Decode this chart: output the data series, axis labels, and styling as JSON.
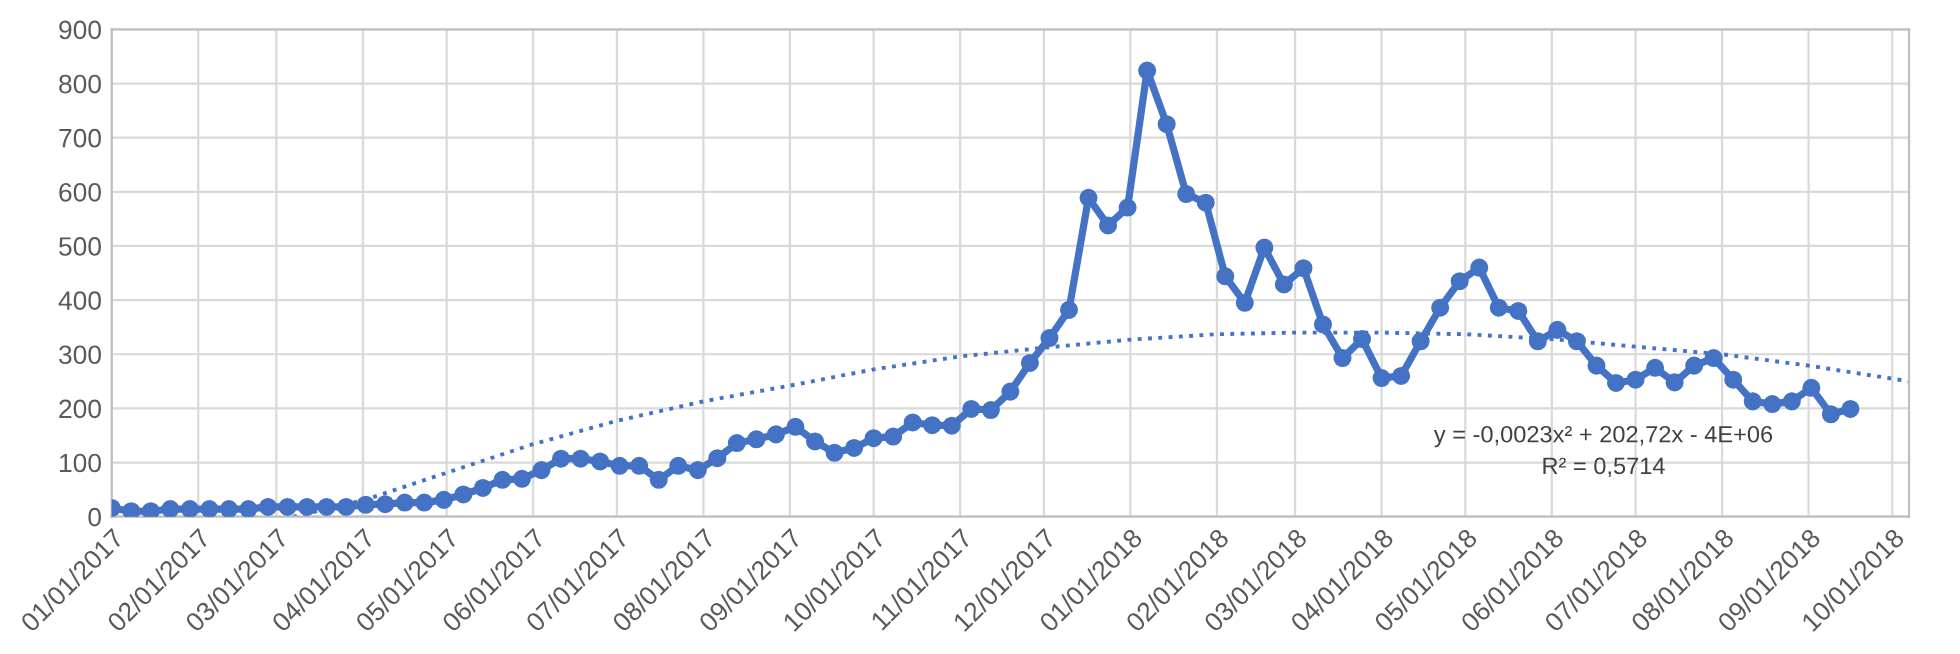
{
  "chart_data": {
    "type": "line",
    "series": [
      {
        "color": "#4472c4",
        "marker": "circle",
        "line_style": "solid",
        "x": [
          "2017-01-01",
          "2017-01-08",
          "2017-01-15",
          "2017-01-22",
          "2017-01-29",
          "2017-02-05",
          "2017-02-12",
          "2017-02-19",
          "2017-02-26",
          "2017-03-05",
          "2017-03-12",
          "2017-03-19",
          "2017-03-26",
          "2017-04-02",
          "2017-04-09",
          "2017-04-16",
          "2017-04-23",
          "2017-04-30",
          "2017-05-07",
          "2017-05-14",
          "2017-05-21",
          "2017-05-28",
          "2017-06-04",
          "2017-06-11",
          "2017-06-18",
          "2017-06-25",
          "2017-07-02",
          "2017-07-09",
          "2017-07-16",
          "2017-07-23",
          "2017-07-30",
          "2017-08-06",
          "2017-08-13",
          "2017-08-20",
          "2017-08-27",
          "2017-09-03",
          "2017-09-10",
          "2017-09-17",
          "2017-09-24",
          "2017-10-01",
          "2017-10-08",
          "2017-10-15",
          "2017-10-22",
          "2017-10-29",
          "2017-11-05",
          "2017-11-12",
          "2017-11-19",
          "2017-11-26",
          "2017-12-03",
          "2017-12-10",
          "2017-12-17",
          "2017-12-24",
          "2017-12-31",
          "2018-01-07",
          "2018-01-14",
          "2018-01-21",
          "2018-01-28",
          "2018-02-04",
          "2018-02-11",
          "2018-02-18",
          "2018-02-25",
          "2018-03-04",
          "2018-03-11",
          "2018-03-18",
          "2018-03-25",
          "2018-04-01",
          "2018-04-08",
          "2018-04-15",
          "2018-04-22",
          "2018-04-29",
          "2018-05-06",
          "2018-05-13",
          "2018-05-20",
          "2018-05-27",
          "2018-06-03",
          "2018-06-10",
          "2018-06-17",
          "2018-06-24",
          "2018-07-01",
          "2018-07-08",
          "2018-07-15",
          "2018-07-22",
          "2018-07-29",
          "2018-08-05",
          "2018-08-12",
          "2018-08-19",
          "2018-08-26",
          "2018-09-02",
          "2018-09-09",
          "2018-09-16"
        ],
        "values": [
          16,
          10,
          10,
          14,
          14,
          14,
          14,
          14,
          18,
          18,
          18,
          18,
          18,
          22,
          23,
          26,
          26,
          31,
          41,
          53,
          68,
          70,
          86,
          107,
          107,
          102,
          94,
          94,
          68,
          94,
          86,
          108,
          136,
          143,
          152,
          166,
          139,
          118,
          127,
          145,
          148,
          174,
          169,
          168,
          199,
          197,
          231,
          284,
          330,
          382,
          589,
          538,
          571,
          824,
          725,
          596,
          580,
          444,
          395,
          497,
          429,
          459,
          355,
          293,
          328,
          256,
          260,
          324,
          386,
          435,
          460,
          386,
          380,
          324,
          345,
          324,
          279,
          247,
          253,
          275,
          248,
          279,
          293,
          253,
          213,
          208,
          213,
          238,
          189,
          199
        ]
      },
      {
        "color": "#4472c4",
        "marker": "none",
        "line_style": "dotted",
        "x": [
          "2017-03-07",
          "2017-04-01",
          "2017-05-01",
          "2017-06-01",
          "2017-07-01",
          "2017-08-01",
          "2017-09-01",
          "2017-10-01",
          "2017-11-01",
          "2017-12-01",
          "2018-01-01",
          "2018-02-01",
          "2018-03-01",
          "2018-04-01",
          "2018-05-01",
          "2018-06-01",
          "2018-07-01",
          "2018-08-01",
          "2018-09-01",
          "2018-10-07"
        ],
        "values": [
          0,
          30,
          81,
          134,
          177,
          213,
          242,
          272,
          296,
          312,
          327,
          337,
          340,
          340,
          337,
          328,
          314,
          300,
          279,
          250
        ]
      }
    ],
    "xlim": [
      "2017-01-01",
      "2018-10-07"
    ],
    "xticks": [
      {
        "value": "2017-01-01",
        "label": "01/01/2017"
      },
      {
        "value": "2017-02-01",
        "label": "02/01/2017"
      },
      {
        "value": "2017-03-01",
        "label": "03/01/2017"
      },
      {
        "value": "2017-04-01",
        "label": "04/01/2017"
      },
      {
        "value": "2017-05-01",
        "label": "05/01/2017"
      },
      {
        "value": "2017-06-01",
        "label": "06/01/2017"
      },
      {
        "value": "2017-07-01",
        "label": "07/01/2017"
      },
      {
        "value": "2017-08-01",
        "label": "08/01/2017"
      },
      {
        "value": "2017-09-01",
        "label": "09/01/2017"
      },
      {
        "value": "2017-10-01",
        "label": "10/01/2017"
      },
      {
        "value": "2017-11-01",
        "label": "11/01/2017"
      },
      {
        "value": "2017-12-01",
        "label": "12/01/2017"
      },
      {
        "value": "2018-01-01",
        "label": "01/01/2018"
      },
      {
        "value": "2018-02-01",
        "label": "02/01/2018"
      },
      {
        "value": "2018-03-01",
        "label": "03/01/2018"
      },
      {
        "value": "2018-04-01",
        "label": "04/01/2018"
      },
      {
        "value": "2018-05-01",
        "label": "05/01/2018"
      },
      {
        "value": "2018-06-01",
        "label": "06/01/2018"
      },
      {
        "value": "2018-07-01",
        "label": "07/01/2018"
      },
      {
        "value": "2018-08-01",
        "label": "08/01/2018"
      },
      {
        "value": "2018-09-01",
        "label": "09/01/2018"
      },
      {
        "value": "2018-10-01",
        "label": "10/01/2018"
      }
    ],
    "ylim": [
      0,
      900
    ],
    "yticks": [
      0,
      100,
      200,
      300,
      400,
      500,
      600,
      700,
      800,
      900
    ],
    "grid": true,
    "annotations": [
      "y = -0,0023x² + 202,72x - 4E+06",
      "R² = 0,5714"
    ]
  }
}
